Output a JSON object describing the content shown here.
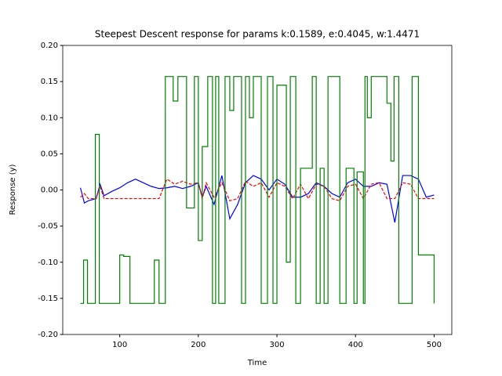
{
  "chart_data": {
    "type": "line",
    "title": "Steepest Descent response for params k:0.1589, e:0.4045, w:1.4471",
    "xlabel": "Time",
    "ylabel": "Response (y)",
    "xlim": [
      27.5,
      522.5
    ],
    "ylim": [
      -0.2,
      0.2
    ],
    "xticks": [
      100,
      200,
      300,
      400,
      500
    ],
    "yticks": [
      {
        "value": -0.2,
        "label": "-0.20"
      },
      {
        "value": -0.15,
        "label": "-0.15"
      },
      {
        "value": -0.1,
        "label": "-0.10"
      },
      {
        "value": -0.05,
        "label": "-0.05"
      },
      {
        "value": 0,
        "label": "0.00"
      },
      {
        "value": 0.05,
        "label": "0.05"
      },
      {
        "value": 0.1,
        "label": "0.10"
      },
      {
        "value": 0.15,
        "label": "0.15"
      },
      {
        "value": 0.2,
        "label": "0.20"
      }
    ],
    "grid": false,
    "series": [
      {
        "color": "#0000ff",
        "style": "solid",
        "drawstyle": "default",
        "x": [
          50,
          55,
          60,
          70,
          75,
          80,
          90,
          100,
          110,
          120,
          130,
          140,
          150,
          160,
          170,
          180,
          190,
          200,
          205,
          210,
          220,
          230,
          240,
          250,
          260,
          270,
          280,
          290,
          300,
          310,
          320,
          330,
          340,
          350,
          360,
          370,
          380,
          390,
          400,
          410,
          420,
          430,
          440,
          450,
          460,
          470,
          480,
          490,
          500
        ],
        "values": [
          0.003,
          -0.018,
          -0.015,
          -0.012,
          0.008,
          -0.008,
          -0.002,
          0.003,
          0.01,
          0.015,
          0.01,
          0.005,
          0.002,
          0.003,
          0.005,
          0.002,
          0.005,
          0.01,
          -0.01,
          0.005,
          -0.02,
          0.02,
          -0.04,
          -0.02,
          0.01,
          0.02,
          0.015,
          0.0,
          0.015,
          0.008,
          -0.01,
          -0.01,
          -0.005,
          0.01,
          0.005,
          -0.005,
          -0.01,
          0.01,
          0.015,
          0.005,
          0.005,
          0.01,
          0.008,
          -0.045,
          0.02,
          0.02,
          0.015,
          -0.01,
          -0.007
        ]
      },
      {
        "color": "#ff0000",
        "style": "dashed",
        "drawstyle": "default",
        "x": [
          50,
          55,
          60,
          70,
          75,
          80,
          90,
          100,
          110,
          120,
          130,
          140,
          150,
          160,
          170,
          180,
          190,
          200,
          205,
          210,
          220,
          230,
          240,
          250,
          260,
          270,
          280,
          290,
          300,
          310,
          320,
          330,
          340,
          350,
          360,
          370,
          380,
          390,
          400,
          410,
          420,
          430,
          440,
          450,
          460,
          470,
          480,
          490,
          500
        ],
        "values": [
          -0.01,
          -0.005,
          -0.012,
          -0.012,
          0.005,
          -0.012,
          -0.012,
          -0.012,
          -0.012,
          -0.012,
          -0.012,
          -0.012,
          -0.012,
          0.015,
          0.008,
          0.012,
          0.008,
          0.01,
          -0.012,
          0.01,
          -0.01,
          0.01,
          -0.015,
          -0.012,
          0.012,
          0.005,
          0.01,
          -0.01,
          0.01,
          0.005,
          -0.012,
          0.008,
          -0.012,
          0.008,
          0.005,
          -0.012,
          -0.015,
          0.005,
          0.008,
          -0.012,
          0.008,
          0.01,
          -0.012,
          -0.012,
          0.01,
          0.008,
          -0.012,
          -0.012,
          -0.012
        ]
      },
      {
        "color": "#008000",
        "style": "solid",
        "drawstyle": "steps-post",
        "x": [
          50,
          54,
          59,
          69,
          74,
          100,
          105,
          113,
          144,
          150,
          158,
          168,
          174,
          185,
          195,
          200,
          205,
          212,
          218,
          222,
          226,
          234,
          240,
          245,
          255,
          260,
          265,
          270,
          280,
          288,
          295,
          300,
          312,
          317,
          324,
          330,
          345,
          350,
          355,
          360,
          365,
          380,
          388,
          398,
          402,
          410,
          412,
          415,
          420,
          440,
          445,
          449,
          455,
          460,
          472,
          475,
          480,
          500
        ],
        "values": [
          -0.157,
          -0.097,
          -0.157,
          0.077,
          -0.157,
          -0.09,
          -0.092,
          -0.157,
          -0.097,
          -0.157,
          0.157,
          0.123,
          0.157,
          -0.025,
          0.157,
          -0.07,
          0.06,
          0.157,
          -0.157,
          0.157,
          -0.157,
          0.157,
          0.11,
          0.157,
          -0.157,
          0.157,
          0.1,
          0.157,
          -0.157,
          0.157,
          -0.157,
          0.145,
          -0.1,
          0.157,
          -0.157,
          0.03,
          0.157,
          -0.157,
          0.03,
          -0.157,
          0.157,
          -0.157,
          0.03,
          -0.157,
          0.025,
          -0.157,
          0.157,
          0.1,
          0.157,
          0.12,
          0.04,
          0.157,
          -0.157,
          -0.157,
          0.157,
          0.157,
          -0.09,
          -0.157
        ]
      }
    ]
  }
}
